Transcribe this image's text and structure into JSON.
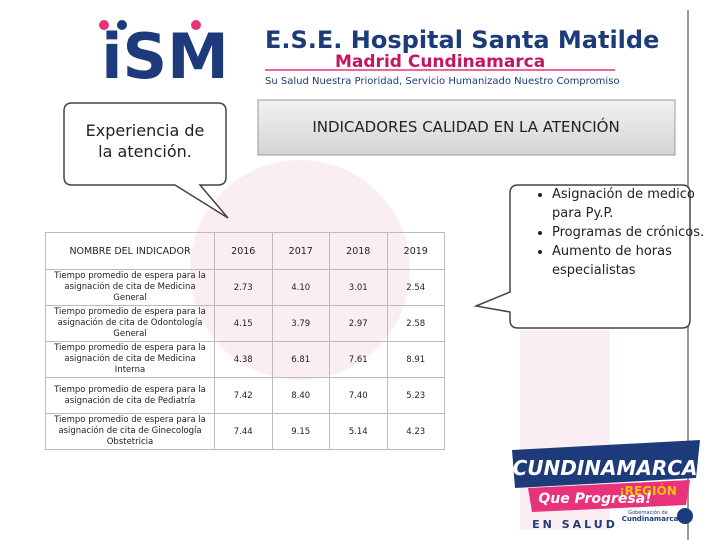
{
  "header": {
    "logo": "iSM",
    "title": "E.S.E. Hospital Santa Matilde",
    "subtitle": "Madrid Cundinamarca",
    "slogan": "Su Salud Nuestra Prioridad, Servicio Humanizado Nuestro Compromiso"
  },
  "callout": "Experiencia de la atención.",
  "banner": "INDICADORES CALIDAD EN LA ATENCIÓN",
  "table": {
    "header": [
      "NOMBRE DEL INDICADOR",
      "2016",
      "2017",
      "2018",
      "2019"
    ],
    "rows": [
      [
        "Tiempo promedio de espera para la asignación de cita de Medicina General",
        "2.73",
        "4.10",
        "3.01",
        "2.54"
      ],
      [
        "Tiempo promedio de espera para la asignación de cita de Odontología General",
        "4.15",
        "3.79",
        "2.97",
        "2.58"
      ],
      [
        "Tiempo promedio de espera para la asignación de cita de Medicina Interna",
        "4.38",
        "6.81",
        "7.61",
        "8.91"
      ],
      [
        "Tiempo promedio de espera para la asignación de cita de Pediatría",
        "7.42",
        "8.40",
        "7.40",
        "5.23"
      ],
      [
        "Tiempo promedio de espera para la asignación de cita de Ginecología Obstetricia",
        "7.44",
        "9.15",
        "5.14",
        "4.23"
      ]
    ]
  },
  "bullets": [
    "Asignación de medico para Py.P.",
    "Programas de crónicos.",
    "Aumento de horas especialistas"
  ],
  "footer_logo": {
    "name": "CUNDINAMARCA",
    "region": "¡REGIÓN",
    "tagline": "Que Progresa!",
    "sector": "EN SALUD",
    "gov_line1": "Gobernación de",
    "gov_line2": "Cundinamarca"
  }
}
